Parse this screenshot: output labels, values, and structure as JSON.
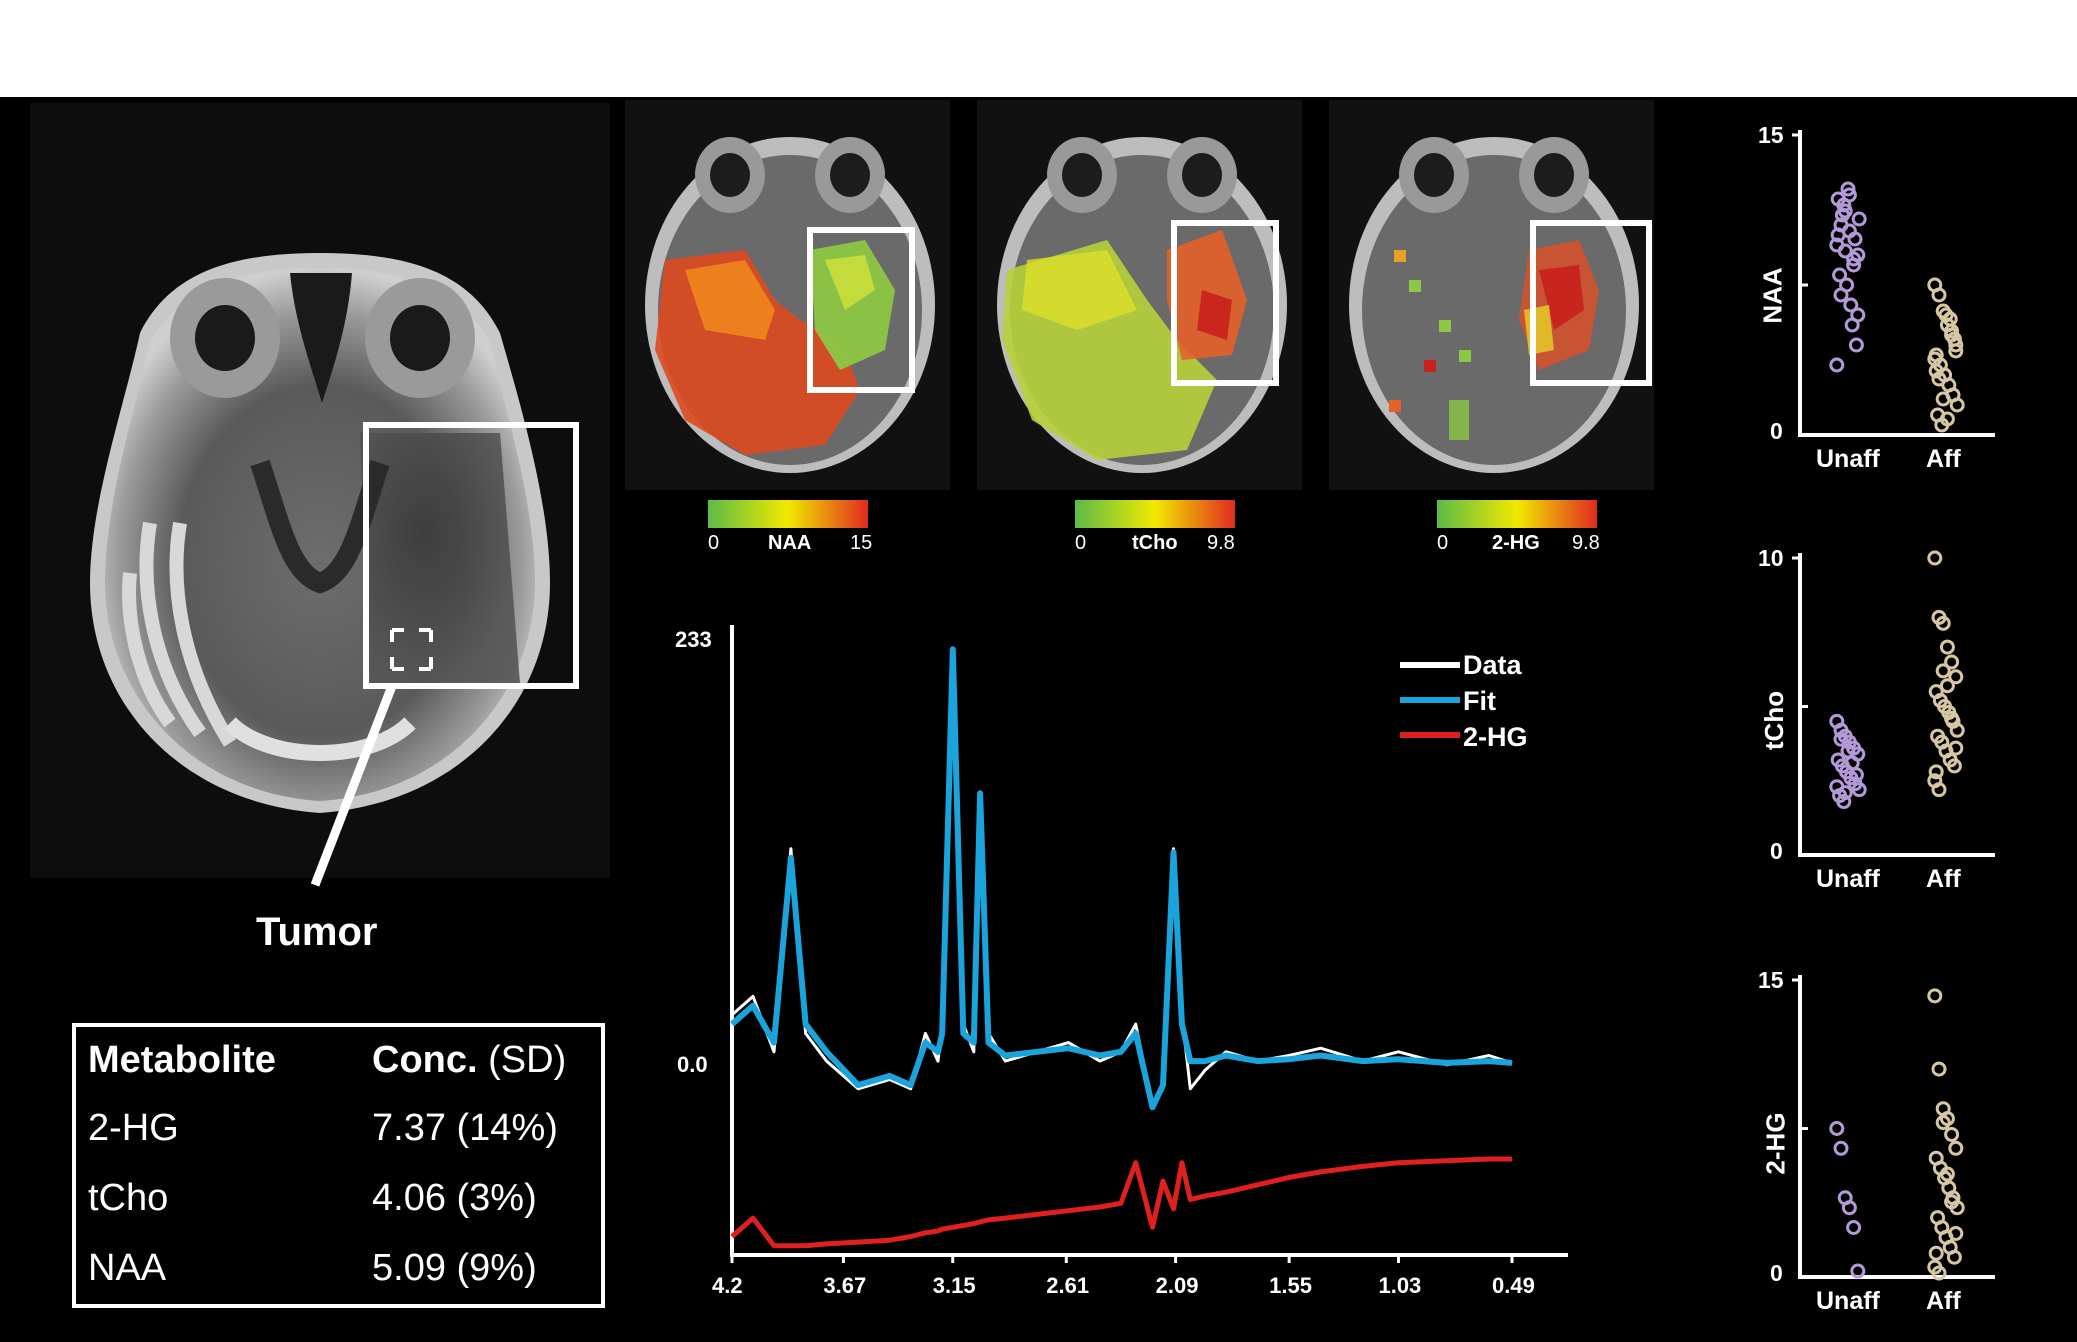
{
  "colors": {
    "background": "#000000",
    "top_band": "#ffffff",
    "data_line": "#ffffff",
    "fit_line": "#1ba3dc",
    "hg_line": "#e0201e",
    "unaffected_dots": "#b39ad6",
    "affected_dots": "#d7c6a4",
    "colormap": [
      "#5dbb46",
      "#f2e900",
      "#e02a20"
    ]
  },
  "main_mri": {
    "annotation": "Tumor"
  },
  "metabolite_maps": [
    {
      "name": "NAA",
      "min": "0",
      "max": "15"
    },
    {
      "name": "tCho",
      "min": "0",
      "max": "9.8"
    },
    {
      "name": "2-HG",
      "min": "0",
      "max": "9.8"
    }
  ],
  "table": {
    "header": {
      "col1": "Metabolite",
      "col2_bold": "Conc.",
      "col2_rest": " (SD)"
    },
    "rows": [
      {
        "metabolite": "2-HG",
        "conc": "7.37 (14%)"
      },
      {
        "metabolite": "tCho",
        "conc": "4.06 (3%)"
      },
      {
        "metabolite": "NAA",
        "conc": "5.09 (9%)"
      }
    ]
  },
  "spectrum": {
    "y_top_label": "233",
    "y_zero_label": "0.0",
    "x_ticks": [
      "4.2",
      "3.67",
      "3.15",
      "2.61",
      "2.09",
      "1.55",
      "1.03",
      "0.49"
    ],
    "legend": [
      "Data",
      "Fit",
      "2-HG"
    ]
  },
  "chart_data": [
    {
      "type": "line",
      "x": [
        4.2,
        4.1,
        4.0,
        3.92,
        3.85,
        3.75,
        3.6,
        3.45,
        3.35,
        3.28,
        3.22,
        3.2,
        3.15,
        3.1,
        3.05,
        3.02,
        2.98,
        2.9,
        2.75,
        2.6,
        2.45,
        2.35,
        2.28,
        2.2,
        2.15,
        2.1,
        2.06,
        2.02,
        1.95,
        1.85,
        1.7,
        1.55,
        1.4,
        1.2,
        1.03,
        0.8,
        0.6,
        0.49
      ],
      "series": [
        {
          "name": "Data",
          "values": [
            30,
            40,
            10,
            120,
            20,
            5,
            -10,
            -5,
            -10,
            20,
            5,
            25,
            228,
            25,
            10,
            150,
            20,
            5,
            10,
            15,
            5,
            10,
            25,
            -20,
            -10,
            120,
            30,
            -10,
            0,
            10,
            5,
            8,
            12,
            5,
            10,
            3,
            8,
            4
          ]
        },
        {
          "name": "Fit",
          "values": [
            25,
            35,
            15,
            115,
            25,
            10,
            -8,
            -3,
            -8,
            15,
            10,
            20,
            228,
            20,
            15,
            150,
            15,
            8,
            10,
            12,
            8,
            10,
            20,
            -20,
            -8,
            118,
            25,
            5,
            5,
            8,
            5,
            6,
            8,
            5,
            6,
            4,
            5,
            4
          ]
        },
        {
          "name": "2-HG",
          "values": [
            -90,
            -80,
            -95,
            -95,
            -95,
            -94,
            -93,
            -92,
            -90,
            -88,
            -87,
            -86,
            -85,
            -84,
            -83,
            -82,
            -81,
            -80,
            -78,
            -76,
            -74,
            -72,
            -50,
            -85,
            -60,
            -75,
            -50,
            -70,
            -68,
            -66,
            -62,
            -58,
            -55,
            -52,
            -50,
            -49,
            -48,
            -48
          ]
        }
      ],
      "legend": [
        "Data",
        "Fit",
        "2-HG"
      ],
      "xlim": [
        4.2,
        0.49
      ],
      "ylim": [
        -100,
        233
      ]
    },
    {
      "type": "scatter",
      "ylabel": "NAA",
      "categories": [
        "Unaff",
        "Aff"
      ],
      "ylim": [
        0,
        15
      ],
      "series": [
        {
          "values": [
            9.5,
            10.5,
            11.2,
            12,
            8.5,
            9,
            10,
            11,
            7.5,
            6.5,
            9.8,
            10.8,
            8,
            11.5,
            12.3,
            5.5,
            4.5,
            3.5,
            7,
            9.2,
            10.2,
            8.8,
            6,
            11.8
          ]
        },
        {
          "values": [
            7.5,
            7,
            6.2,
            5.5,
            5,
            4.5,
            4,
            3.5,
            3,
            2.5,
            2,
            1.5,
            1,
            0.5,
            6,
            5.8,
            4.8,
            3.8,
            2.8,
            1.8,
            0.8,
            5.2,
            4.2,
            3.2
          ]
        }
      ]
    },
    {
      "type": "scatter",
      "ylabel": "tCho",
      "categories": [
        "Unaff",
        "Aff"
      ],
      "ylim": [
        0,
        10
      ],
      "series": [
        {
          "values": [
            4.5,
            4.2,
            4,
            3.8,
            3.6,
            3.4,
            3.2,
            3,
            2.8,
            2.6,
            2.4,
            2.2,
            2,
            1.8,
            3.5,
            3.1,
            2.7,
            2.3,
            3.9,
            2.1
          ]
        },
        {
          "values": [
            10,
            8,
            7.8,
            7,
            6.5,
            6,
            5.5,
            5.2,
            5,
            4.8,
            4.5,
            4.2,
            4,
            3.8,
            3.5,
            3.2,
            3,
            2.5,
            2.2,
            6.2,
            5.7,
            4.6,
            3.6,
            2.8
          ]
        }
      ]
    },
    {
      "type": "scatter",
      "ylabel": "2-HG",
      "categories": [
        "Unaff",
        "Aff"
      ],
      "ylim": [
        0,
        15
      ],
      "series": [
        {
          "values": [
            7.5,
            6.5,
            4,
            3.5,
            2.5,
            0.3
          ]
        },
        {
          "values": [
            14.2,
            10.5,
            8.5,
            8,
            7.2,
            6.5,
            6,
            5.5,
            5,
            4.5,
            4,
            3.5,
            3,
            2.5,
            2,
            1.5,
            1,
            0.5,
            0.2,
            7.8,
            5.2,
            3.8,
            2.2,
            1.2
          ]
        }
      ]
    }
  ]
}
